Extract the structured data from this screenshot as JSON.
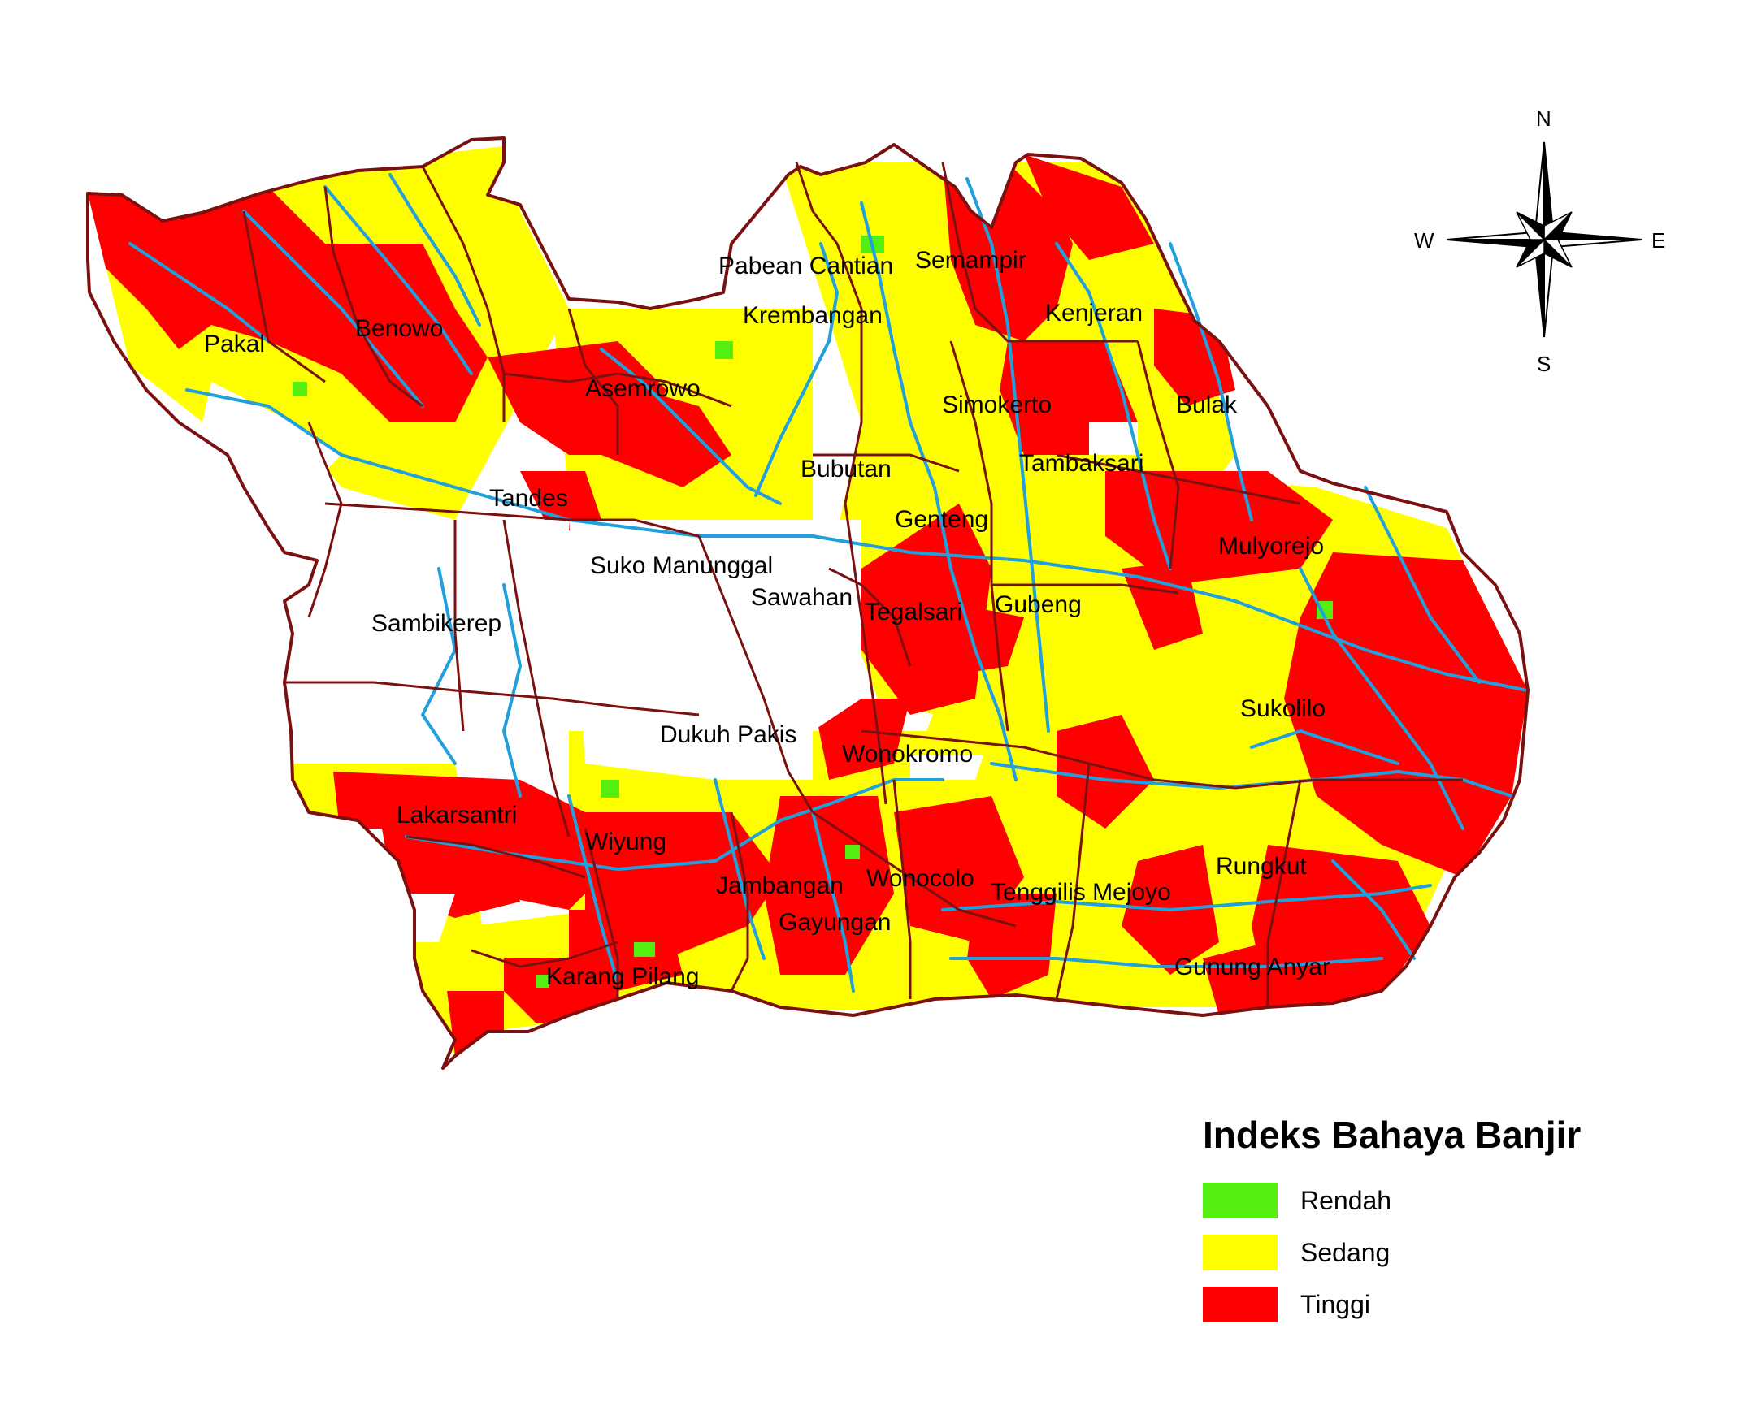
{
  "legend": {
    "title": "Indeks Bahaya Banjir",
    "items": [
      {
        "label": "Rendah",
        "color": "#55ee11"
      },
      {
        "label": "Sedang",
        "color": "#ffff00"
      },
      {
        "label": "Tinggi",
        "color": "#ff0000"
      }
    ]
  },
  "compass": {
    "n": "N",
    "s": "S",
    "e": "E",
    "w": "W"
  },
  "colors": {
    "boundary": "#7a1010",
    "river": "#22a0dd",
    "land_unclassified": "#ffffff"
  },
  "districts": [
    {
      "id": "pakal",
      "name": "Pakal",
      "hazard": "Tinggi"
    },
    {
      "id": "benowo",
      "name": "Benowo",
      "hazard": "Tinggi"
    },
    {
      "id": "asemrowo",
      "name": "Asemrowo",
      "hazard": "Tinggi"
    },
    {
      "id": "pabean",
      "name": "Pabean Cantian",
      "hazard": "Sedang"
    },
    {
      "id": "semampir",
      "name": "Semampir",
      "hazard": "Tinggi"
    },
    {
      "id": "krembangan",
      "name": "Krembangan",
      "hazard": "Sedang"
    },
    {
      "id": "kenjeran",
      "name": "Kenjeran",
      "hazard": "Tinggi"
    },
    {
      "id": "simokerto",
      "name": "Simokerto",
      "hazard": "Sedang"
    },
    {
      "id": "bulak",
      "name": "Bulak",
      "hazard": "Tinggi"
    },
    {
      "id": "bubutan",
      "name": "Bubutan",
      "hazard": "Tinggi"
    },
    {
      "id": "tambaksari",
      "name": "Tambaksari",
      "hazard": "Tinggi"
    },
    {
      "id": "tandes",
      "name": "Tandes",
      "hazard": "Sedang"
    },
    {
      "id": "genteng",
      "name": "Genteng",
      "hazard": "Sedang"
    },
    {
      "id": "mulyorejo",
      "name": "Mulyorejo",
      "hazard": "Tinggi"
    },
    {
      "id": "sukomanunggal",
      "name": "Suko Manunggal",
      "hazard": "Sedang"
    },
    {
      "id": "sawahan",
      "name": "Sawahan",
      "hazard": "Tinggi"
    },
    {
      "id": "tegalsari",
      "name": "Tegalsari",
      "hazard": "Tinggi"
    },
    {
      "id": "gubeng",
      "name": "Gubeng",
      "hazard": "Sedang"
    },
    {
      "id": "sambikerep",
      "name": "Sambikerep",
      "hazard": "Rendah"
    },
    {
      "id": "sukolilo",
      "name": "Sukolilo",
      "hazard": "Tinggi"
    },
    {
      "id": "dukuhpakis",
      "name": "Dukuh Pakis",
      "hazard": "Rendah"
    },
    {
      "id": "wonokromo",
      "name": "Wonokromo",
      "hazard": "Sedang"
    },
    {
      "id": "lakarsantri",
      "name": "Lakarsantri",
      "hazard": "Tinggi"
    },
    {
      "id": "wiyung",
      "name": "Wiyung",
      "hazard": "Tinggi"
    },
    {
      "id": "rungkut",
      "name": "Rungkut",
      "hazard": "Sedang"
    },
    {
      "id": "jambangan",
      "name": "Jambangan",
      "hazard": "Tinggi"
    },
    {
      "id": "wonocolo",
      "name": "Wonocolo",
      "hazard": "Tinggi"
    },
    {
      "id": "tenggilis",
      "name": "Tenggilis Mejoyo",
      "hazard": "Sedang"
    },
    {
      "id": "gayungan",
      "name": "Gayungan",
      "hazard": "Sedang"
    },
    {
      "id": "gununganyar",
      "name": "Gunung Anyar",
      "hazard": "Sedang"
    },
    {
      "id": "karangpilang",
      "name": "Karang Pilang",
      "hazard": "Sedang"
    }
  ]
}
